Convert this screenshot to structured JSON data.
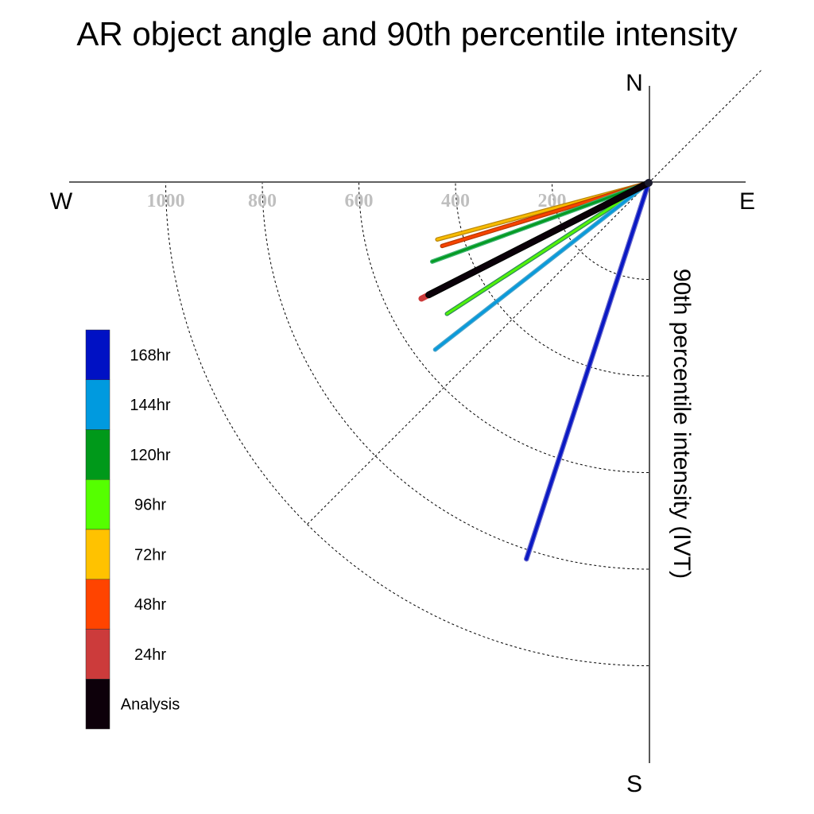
{
  "chart_data": {
    "type": "polar-vector",
    "title": "AR object angle and 90th percentile intensity",
    "ylabel": "90th percentile intensity (IVT)",
    "compass": {
      "north": "N",
      "south": "S",
      "east": "E",
      "west": "W"
    },
    "radial_ticks": [
      200,
      400,
      600,
      800,
      1000
    ],
    "radial_max": 1200,
    "grid": true,
    "legend_position": "left",
    "legend": [
      {
        "label": "168hr",
        "color": "#0011c4"
      },
      {
        "label": "144hr",
        "color": "#009adf"
      },
      {
        "label": "120hr",
        "color": "#00991a"
      },
      {
        "label": "96hr",
        "color": "#55ff00"
      },
      {
        "label": "72hr",
        "color": "#ffc200"
      },
      {
        "label": "48hr",
        "color": "#ff4400"
      },
      {
        "label": "24hr",
        "color": "#cc3b3b"
      },
      {
        "label": "Analysis",
        "color": "#0d000a"
      }
    ],
    "series": [
      {
        "name": "72hr",
        "angle": 255,
        "value": 453,
        "color": "#ffc200",
        "edge": "#b8860b",
        "width": 4
      },
      {
        "name": "48hr",
        "angle": 253,
        "value": 447,
        "color": "#ff4400",
        "edge": "#b83a00",
        "width": 4
      },
      {
        "name": "120hr",
        "angle": 250,
        "value": 477,
        "color": "#00991a",
        "edge": "#3cb371",
        "width": 4
      },
      {
        "name": "96hr",
        "angle": 237,
        "value": 498,
        "color": "#55ff00",
        "edge": "#2e8b57",
        "width": 4
      },
      {
        "name": "144hr",
        "angle": 232,
        "value": 561,
        "color": "#009adf",
        "edge": "#4aa3c8",
        "width": 4
      },
      {
        "name": "168hr",
        "angle": 198,
        "value": 819,
        "color": "#0011c4",
        "edge": "#6a6acc",
        "width": 5
      },
      {
        "name": "24hr",
        "angle": 243,
        "value": 528,
        "color": "#cc3b3b",
        "edge": "#cc3b3b",
        "width": 6
      },
      {
        "name": "Analysis",
        "angle": 243,
        "value": 511,
        "color": "#0d000a",
        "edge": "#000000",
        "width": 7
      }
    ]
  }
}
